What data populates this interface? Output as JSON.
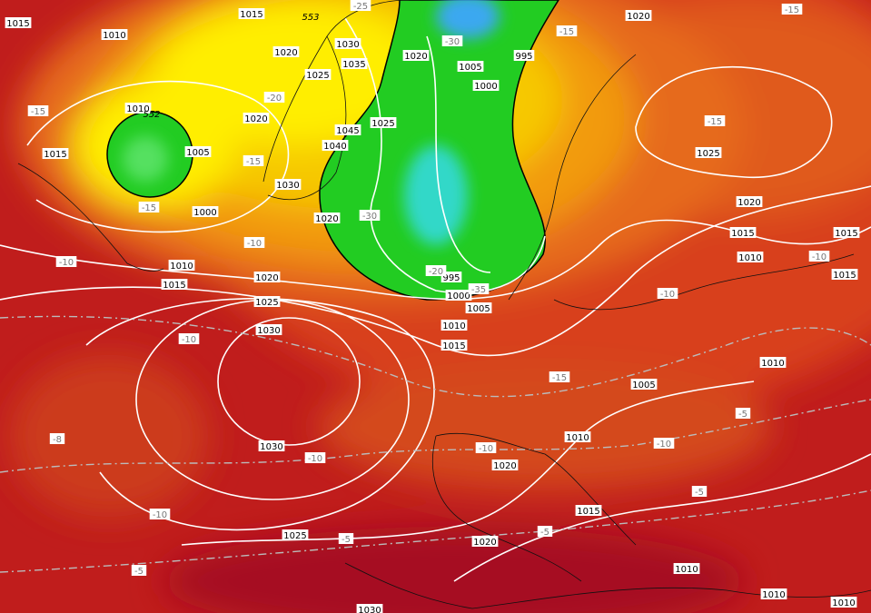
{
  "pressure_labels": [
    "1015",
    "1010",
    "1015",
    "1020",
    "1020",
    "1030",
    "1020",
    "1035",
    "1005",
    "995",
    "1025",
    "1000",
    "1010",
    "1020",
    "1025",
    "1045",
    "1040",
    "1005",
    "1015",
    "1025",
    "1030",
    "1020",
    "1000",
    "1020",
    "1015",
    "1015",
    "1010",
    "1010",
    "1015",
    "1020",
    "1015",
    "995",
    "1000",
    "1025",
    "1005",
    "1010",
    "1030",
    "1015",
    "1010",
    "1005",
    "1010",
    "1030",
    "1020",
    "1015",
    "1025",
    "1020",
    "1010",
    "1010",
    "1010",
    "1030"
  ],
  "temperature_labels": [
    "-25",
    "-15",
    "-30",
    "-15",
    "-20",
    "-15",
    "-15",
    "-15",
    "-15",
    "-30",
    "-10",
    "-10",
    "-10",
    "-20",
    "-35",
    "-10",
    "-10",
    "-15",
    "-5",
    "-8",
    "-10",
    "-10",
    "-10",
    "-5",
    "-10",
    "-5",
    "-5",
    "-5"
  ],
  "height_labels": [
    "552",
    "553"
  ]
}
